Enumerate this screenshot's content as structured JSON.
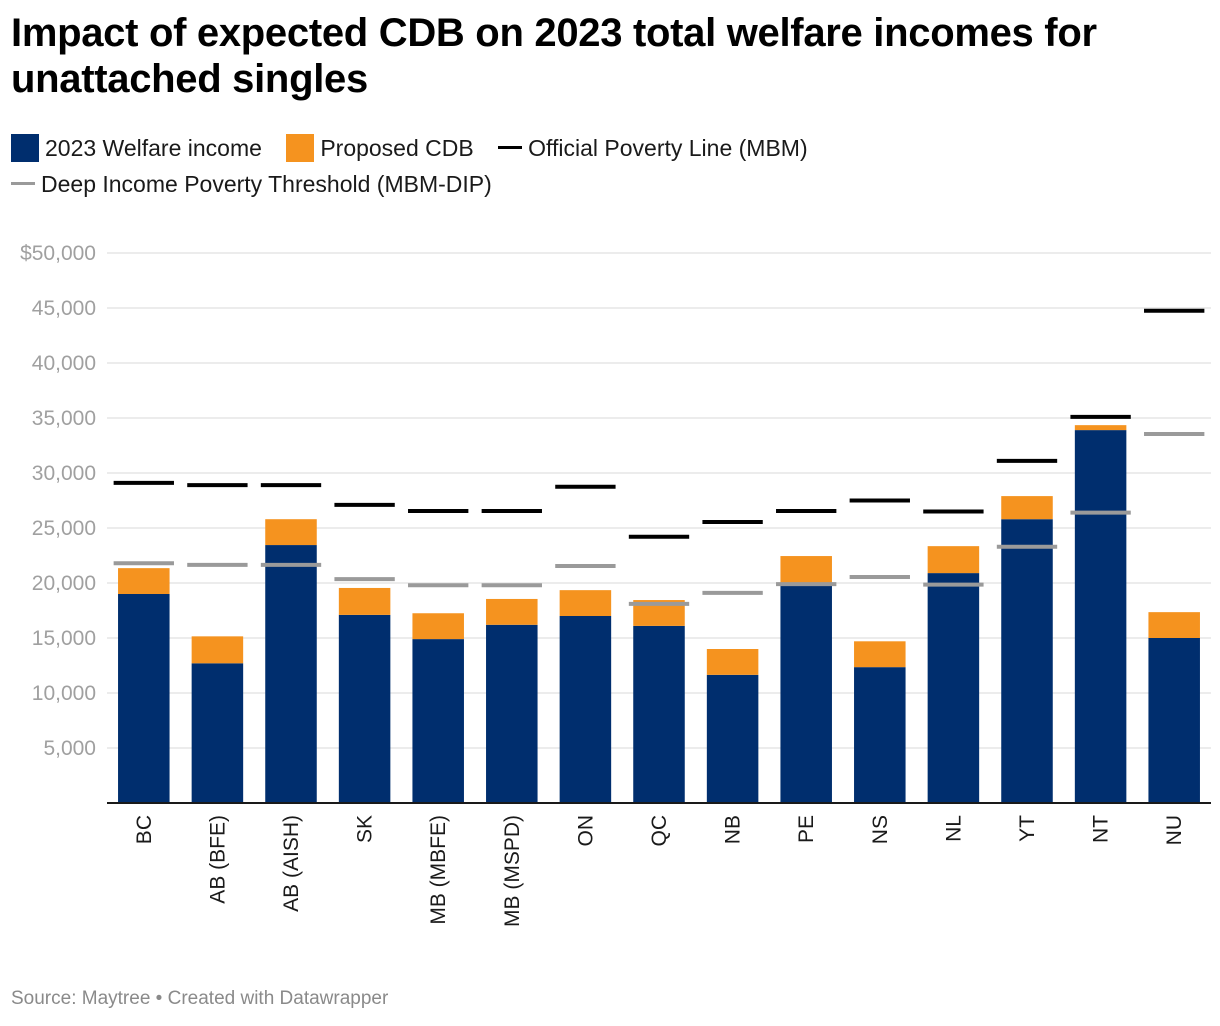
{
  "chart_data": {
    "type": "bar",
    "stacked": true,
    "title": "Impact of expected CDB on 2023 total welfare incomes for unattached singles",
    "xlabel": "",
    "ylabel": "",
    "ylim": [
      0,
      50000
    ],
    "yticks": [
      5000,
      10000,
      15000,
      20000,
      25000,
      30000,
      35000,
      40000,
      45000,
      50000
    ],
    "ytick_labels": [
      "5,000",
      "10,000",
      "15,000",
      "20,000",
      "25,000",
      "30,000",
      "35,000",
      "40,000",
      "45,000",
      "$50,000"
    ],
    "grid": true,
    "legend_position": "top-left",
    "categories": [
      "BC",
      "AB (BFE)",
      "AB (AISH)",
      "SK",
      "MB (MBFE)",
      "MB (MSPD)",
      "ON",
      "QC",
      "NB",
      "PE",
      "NS",
      "NL",
      "YT",
      "NT",
      "NU"
    ],
    "series": [
      {
        "name": "2023 Welfare income",
        "color": "#002e6e",
        "values": [
          19000,
          12700,
          23450,
          17100,
          14900,
          16200,
          17000,
          16100,
          11650,
          19800,
          12350,
          20900,
          25800,
          33900,
          15000
        ]
      },
      {
        "name": "Proposed CDB",
        "color": "#f5931f",
        "values": [
          2350,
          2450,
          2350,
          2450,
          2350,
          2350,
          2350,
          2350,
          2350,
          2650,
          2350,
          2450,
          2100,
          450,
          2350
        ]
      }
    ],
    "lines": [
      {
        "name": "Official Poverty Line (MBM)",
        "color": "#000000",
        "values": [
          29100,
          28900,
          28900,
          27100,
          26550,
          26550,
          28750,
          24200,
          25550,
          26550,
          27500,
          26500,
          31100,
          35100,
          44750
        ]
      },
      {
        "name": "Deep Income Poverty Threshold (MBM-DIP)",
        "color": "#9a9a9a",
        "values": [
          21800,
          21650,
          21650,
          20350,
          19800,
          19800,
          21550,
          18100,
          19100,
          19900,
          20550,
          19850,
          23300,
          26400,
          33550
        ]
      }
    ]
  },
  "legend": {
    "items": [
      {
        "label": "2023 Welfare income",
        "kind": "box",
        "color": "#002e6e"
      },
      {
        "label": "Proposed CDB",
        "kind": "box",
        "color": "#f5931f"
      },
      {
        "label": "Official Poverty Line (MBM)",
        "kind": "line",
        "color": "#000000"
      },
      {
        "label": "Deep Income Poverty Threshold (MBM-DIP)",
        "kind": "line",
        "color": "#9a9a9a"
      }
    ]
  },
  "footer": {
    "text": "Source: Maytree • Created with Datawrapper"
  }
}
